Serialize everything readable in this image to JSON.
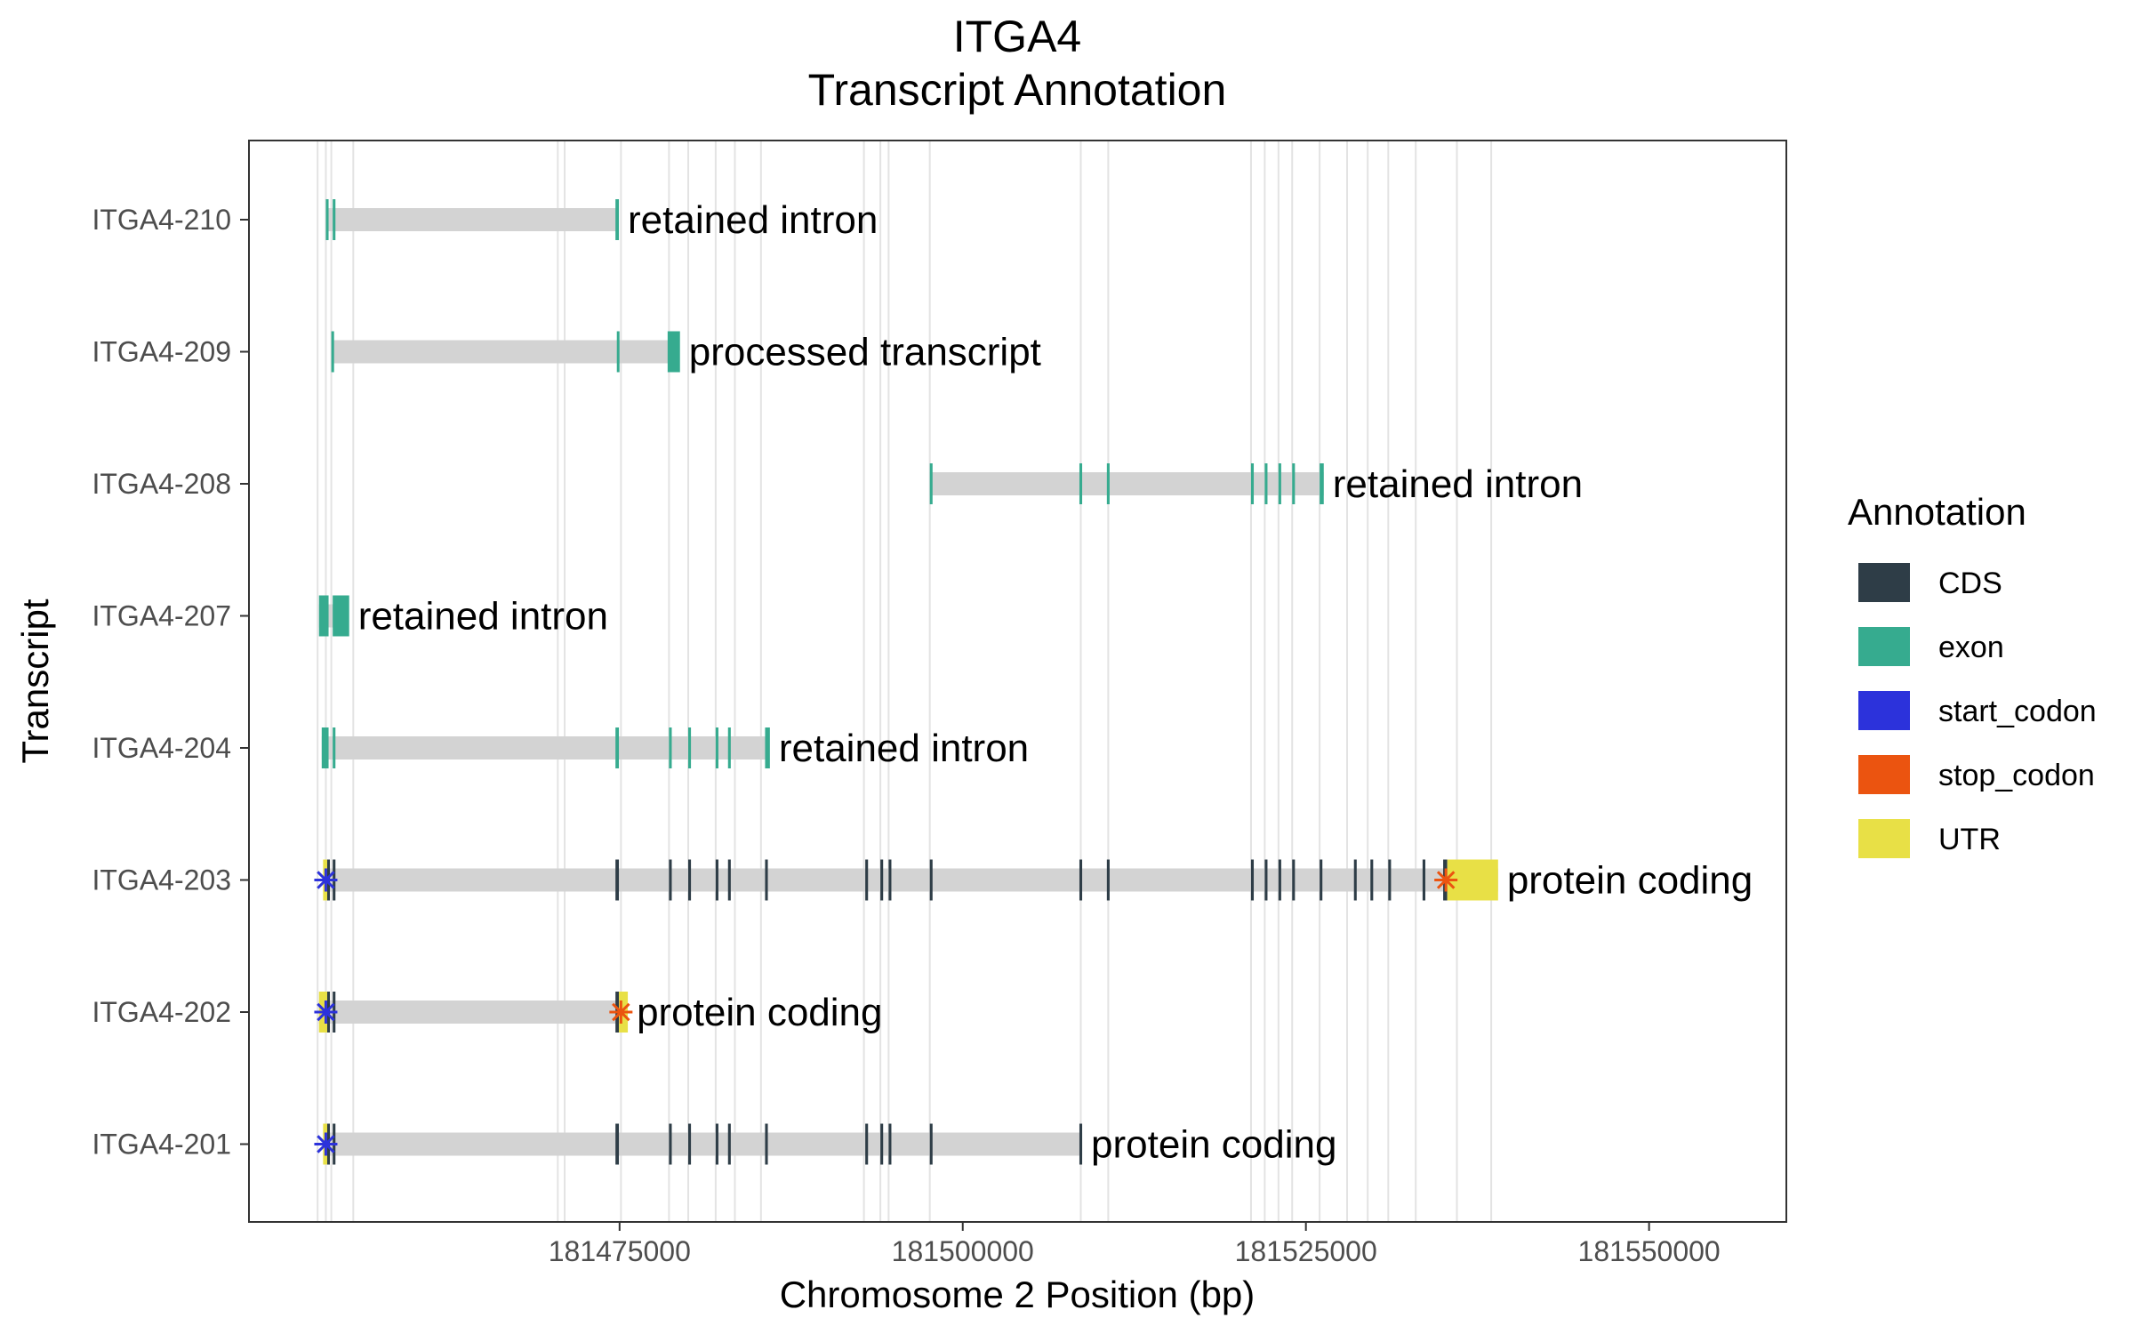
{
  "chart_data": {
    "type": "gene-track",
    "title": "ITGA4",
    "subtitle": "Transcript Annotation",
    "xlabel": "Chromosome 2 Position (bp)",
    "ylabel": "Transcript",
    "xlim": [
      181448000,
      181560000
    ],
    "xticks": [
      181475000,
      181500000,
      181525000,
      181550000
    ],
    "xtick_labels": [
      "181475000",
      "181500000",
      "181525000",
      "181550000"
    ],
    "grid": "vertical lines at exon boundaries",
    "legend": {
      "title": "Annotation",
      "placement": "right",
      "entries": [
        {
          "label": "CDS",
          "color": "#2e3d47"
        },
        {
          "label": "exon",
          "color": "#36ab8f"
        },
        {
          "label": "start_codon",
          "color": "#2c32db"
        },
        {
          "label": "stop_codon",
          "color": "#eb5410"
        },
        {
          "label": "UTR",
          "color": "#e8e046"
        }
      ]
    },
    "intron_color": "#d3d3d3",
    "grid_positions": [
      181453000,
      181453600,
      181454000,
      181455600,
      181470500,
      181471000,
      181475100,
      181478600,
      181480000,
      181482000,
      181483400,
      181485300,
      181492800,
      181494000,
      181494600,
      181497600,
      181508600,
      181510600,
      181521000,
      181522000,
      181523000,
      181524000,
      181526000,
      181528000,
      181529500,
      181531000,
      181533000,
      181536000,
      181538500
    ],
    "transcripts": [
      {
        "name": "ITGA4-210",
        "label": "retained intron",
        "start": 181453600,
        "end": 181474900,
        "features": [
          {
            "type": "exon",
            "start": 181453600,
            "end": 181453800
          },
          {
            "type": "exon",
            "start": 181454100,
            "end": 181454300
          },
          {
            "type": "exon",
            "start": 181474700,
            "end": 181474950
          }
        ]
      },
      {
        "name": "ITGA4-209",
        "label": "processed transcript",
        "start": 181454000,
        "end": 181479300,
        "features": [
          {
            "type": "exon",
            "start": 181454000,
            "end": 181454200
          },
          {
            "type": "exon",
            "start": 181474800,
            "end": 181474950
          },
          {
            "type": "exon",
            "start": 181478500,
            "end": 181479400
          }
        ]
      },
      {
        "name": "ITGA4-208",
        "label": "retained intron",
        "start": 181497600,
        "end": 181526300,
        "features": [
          {
            "type": "exon",
            "start": 181497600,
            "end": 181497800
          },
          {
            "type": "exon",
            "start": 181508500,
            "end": 181508700
          },
          {
            "type": "exon",
            "start": 181510500,
            "end": 181510700
          },
          {
            "type": "exon",
            "start": 181521000,
            "end": 181521200
          },
          {
            "type": "exon",
            "start": 181522000,
            "end": 181522200
          },
          {
            "type": "exon",
            "start": 181523000,
            "end": 181523200
          },
          {
            "type": "exon",
            "start": 181524000,
            "end": 181524200
          },
          {
            "type": "exon",
            "start": 181526000,
            "end": 181526300
          }
        ]
      },
      {
        "name": "ITGA4-207",
        "label": "retained intron",
        "start": 181453100,
        "end": 181455200,
        "features": [
          {
            "type": "exon",
            "start": 181453100,
            "end": 181453800
          },
          {
            "type": "exon",
            "start": 181454100,
            "end": 181455300
          }
        ]
      },
      {
        "name": "ITGA4-204",
        "label": "retained intron",
        "start": 181453300,
        "end": 181485900,
        "features": [
          {
            "type": "exon",
            "start": 181453300,
            "end": 181453800
          },
          {
            "type": "exon",
            "start": 181454100,
            "end": 181454300
          },
          {
            "type": "exon",
            "start": 181474700,
            "end": 181474950
          },
          {
            "type": "exon",
            "start": 181478600,
            "end": 181478800
          },
          {
            "type": "exon",
            "start": 181480000,
            "end": 181480200
          },
          {
            "type": "exon",
            "start": 181482000,
            "end": 181482200
          },
          {
            "type": "exon",
            "start": 181482900,
            "end": 181483100
          },
          {
            "type": "exon",
            "start": 181485600,
            "end": 181485950
          }
        ]
      },
      {
        "name": "ITGA4-203",
        "label": "protein coding",
        "start": 181453400,
        "end": 181539000,
        "features": [
          {
            "type": "UTR",
            "start": 181453400,
            "end": 181453700
          },
          {
            "type": "CDS",
            "start": 181453700,
            "end": 181453850
          },
          {
            "type": "CDS",
            "start": 181454100,
            "end": 181454300
          },
          {
            "type": "CDS",
            "start": 181474700,
            "end": 181474950
          },
          {
            "type": "CDS",
            "start": 181478600,
            "end": 181478800
          },
          {
            "type": "CDS",
            "start": 181480000,
            "end": 181480200
          },
          {
            "type": "CDS",
            "start": 181482000,
            "end": 181482200
          },
          {
            "type": "CDS",
            "start": 181482900,
            "end": 181483100
          },
          {
            "type": "CDS",
            "start": 181485600,
            "end": 181485800
          },
          {
            "type": "CDS",
            "start": 181492900,
            "end": 181493100
          },
          {
            "type": "CDS",
            "start": 181494000,
            "end": 181494200
          },
          {
            "type": "CDS",
            "start": 181494600,
            "end": 181494800
          },
          {
            "type": "CDS",
            "start": 181497600,
            "end": 181497800
          },
          {
            "type": "CDS",
            "start": 181508500,
            "end": 181508700
          },
          {
            "type": "CDS",
            "start": 181510500,
            "end": 181510700
          },
          {
            "type": "CDS",
            "start": 181521000,
            "end": 181521200
          },
          {
            "type": "CDS",
            "start": 181522000,
            "end": 181522200
          },
          {
            "type": "CDS",
            "start": 181523000,
            "end": 181523200
          },
          {
            "type": "CDS",
            "start": 181524000,
            "end": 181524200
          },
          {
            "type": "CDS",
            "start": 181526000,
            "end": 181526200
          },
          {
            "type": "CDS",
            "start": 181528500,
            "end": 181528700
          },
          {
            "type": "CDS",
            "start": 181529700,
            "end": 181529900
          },
          {
            "type": "CDS",
            "start": 181531000,
            "end": 181531200
          },
          {
            "type": "CDS",
            "start": 181533500,
            "end": 181533700
          },
          {
            "type": "CDS",
            "start": 181535000,
            "end": 181535300
          },
          {
            "type": "UTR",
            "start": 181535300,
            "end": 181539000
          }
        ],
        "start_codon": 181453600,
        "stop_codon": 181535200
      },
      {
        "name": "ITGA4-202",
        "label": "protein coding",
        "start": 181453100,
        "end": 181475500,
        "features": [
          {
            "type": "UTR",
            "start": 181453100,
            "end": 181453700
          },
          {
            "type": "CDS",
            "start": 181453700,
            "end": 181453850
          },
          {
            "type": "CDS",
            "start": 181454100,
            "end": 181454300
          },
          {
            "type": "CDS",
            "start": 181474700,
            "end": 181474950
          },
          {
            "type": "UTR",
            "start": 181474950,
            "end": 181475600
          }
        ],
        "start_codon": 181453600,
        "stop_codon": 181475100
      },
      {
        "name": "ITGA4-201",
        "label": "protein coding",
        "start": 181453400,
        "end": 181508700,
        "features": [
          {
            "type": "UTR",
            "start": 181453400,
            "end": 181453700
          },
          {
            "type": "CDS",
            "start": 181453700,
            "end": 181453850
          },
          {
            "type": "CDS",
            "start": 181454100,
            "end": 181454300
          },
          {
            "type": "CDS",
            "start": 181474700,
            "end": 181474950
          },
          {
            "type": "CDS",
            "start": 181478600,
            "end": 181478800
          },
          {
            "type": "CDS",
            "start": 181480000,
            "end": 181480200
          },
          {
            "type": "CDS",
            "start": 181482000,
            "end": 181482200
          },
          {
            "type": "CDS",
            "start": 181482900,
            "end": 181483100
          },
          {
            "type": "CDS",
            "start": 181485600,
            "end": 181485800
          },
          {
            "type": "CDS",
            "start": 181492900,
            "end": 181493100
          },
          {
            "type": "CDS",
            "start": 181494000,
            "end": 181494200
          },
          {
            "type": "CDS",
            "start": 181494600,
            "end": 181494800
          },
          {
            "type": "CDS",
            "start": 181497600,
            "end": 181497800
          },
          {
            "type": "CDS",
            "start": 181508500,
            "end": 181508700
          }
        ],
        "start_codon": 181453600
      }
    ]
  }
}
